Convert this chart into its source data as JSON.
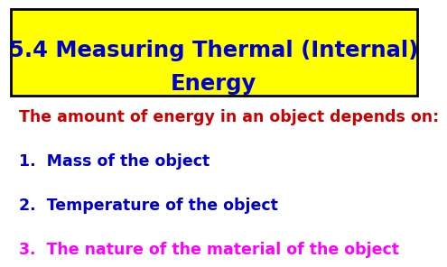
{
  "title_line1": "5.4 Measuring Thermal (Internal)",
  "title_line2": "Energy",
  "title_color": "#0000CC",
  "title_bg_color": "#FFFF00",
  "title_border_color": "#000000",
  "bg_color": "#FFFFFF",
  "intro_text": "The amount of energy in an object depends on:",
  "intro_color": "#CC0000",
  "items": [
    {
      "num": "1.  ",
      "text": "Mass of the object",
      "color": "#0000CC"
    },
    {
      "num": "2.  ",
      "text": "Temperature of the object",
      "color": "#0000CC"
    },
    {
      "num": "3.  ",
      "text": "The nature of the material of the object",
      "color": "#FF00FF"
    }
  ],
  "font_size_title": 17.5,
  "font_size_intro": 12.5,
  "font_size_items": 12.5
}
